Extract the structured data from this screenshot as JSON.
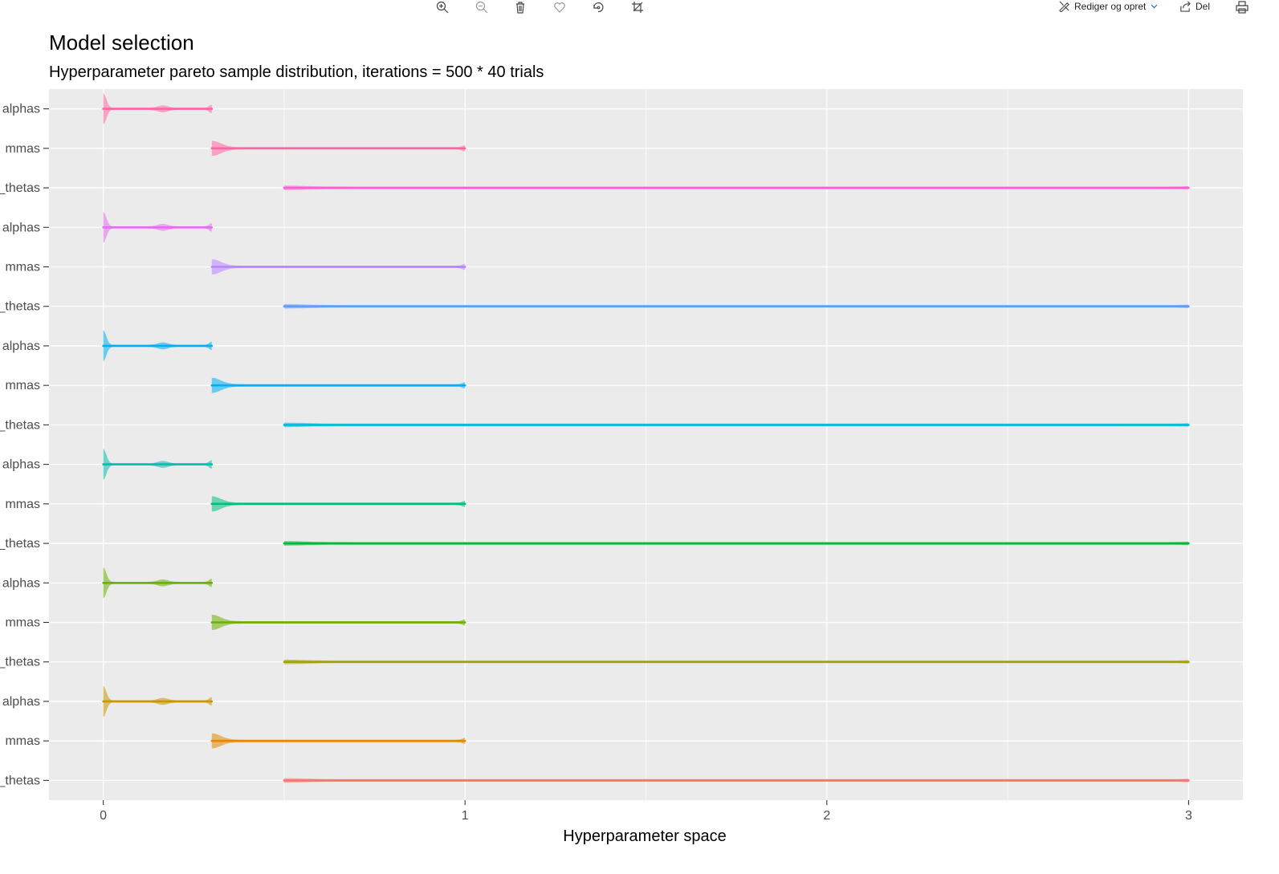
{
  "toolbar": {
    "icons": [
      "zoom-in-icon",
      "zoom-out-icon",
      "trash-icon",
      "heart-icon",
      "focus-icon",
      "crop-icon"
    ],
    "edit_label": "Rediger og opret",
    "share_label": "Del"
  },
  "chart_data": {
    "type": "violin",
    "title": "Model selection",
    "subtitle": "Hyperparameter pareto sample distribution, iterations = 500 * 40 trials",
    "xlabel": "Hyperparameter space",
    "ylabel": "",
    "xlim": [
      -0.15,
      3.15
    ],
    "xticks": [
      0,
      1,
      2,
      3
    ],
    "grid": true,
    "legend": "none",
    "categories": [
      "_thetas",
      "mmas",
      "alphas",
      "_thetas",
      "mmas",
      "alphas",
      "_thetas",
      "mmas",
      "alphas",
      "_thetas",
      "mmas",
      "alphas",
      "_thetas",
      "mmas",
      "alphas",
      "_thetas",
      "mmas",
      "alphas"
    ],
    "series": [
      {
        "color": "#F8766D",
        "range": [
          0.5,
          3.0
        ]
      },
      {
        "color": "#E58700",
        "range": [
          0.3,
          1.0
        ]
      },
      {
        "color": "#C99800",
        "range": [
          0.0,
          0.3
        ]
      },
      {
        "color": "#A3A500",
        "range": [
          0.5,
          3.0
        ]
      },
      {
        "color": "#6BB100",
        "range": [
          0.3,
          1.0
        ]
      },
      {
        "color": "#6BB100",
        "range": [
          0.0,
          0.3
        ]
      },
      {
        "color": "#00BA38",
        "range": [
          0.5,
          3.0
        ]
      },
      {
        "color": "#00BF7D",
        "range": [
          0.3,
          1.0
        ]
      },
      {
        "color": "#00C0AF",
        "range": [
          0.0,
          0.3
        ]
      },
      {
        "color": "#00BCD8",
        "range": [
          0.5,
          3.0
        ]
      },
      {
        "color": "#00B0F6",
        "range": [
          0.3,
          1.0
        ]
      },
      {
        "color": "#00B0F6",
        "range": [
          0.0,
          0.3
        ]
      },
      {
        "color": "#619CFF",
        "range": [
          0.5,
          3.0
        ]
      },
      {
        "color": "#B983FF",
        "range": [
          0.3,
          1.0
        ]
      },
      {
        "color": "#E76BF3",
        "range": [
          0.0,
          0.3
        ]
      },
      {
        "color": "#FD61D1",
        "range": [
          0.5,
          3.0
        ]
      },
      {
        "color": "#FF67A4",
        "range": [
          0.3,
          1.0
        ]
      },
      {
        "color": "#FF67A4",
        "range": [
          0.0,
          0.3
        ]
      }
    ]
  }
}
